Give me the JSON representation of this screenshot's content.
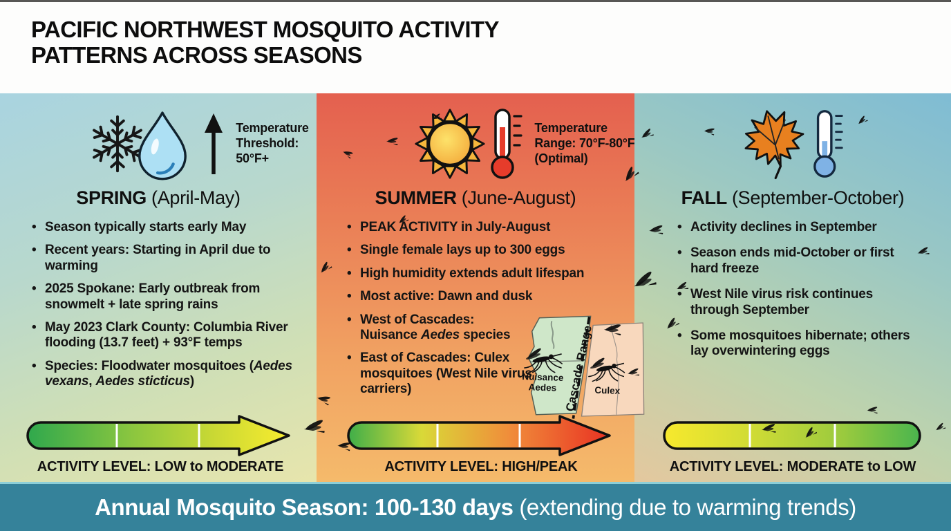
{
  "header": {
    "title_line1": "PACIFIC NORTHWEST MOSQUITO ACTIVITY",
    "title_line2": "PATTERNS ACROSS SEASONS"
  },
  "seasons": {
    "spring": {
      "name": "SPRING",
      "range": "(April-May)",
      "temp": {
        "line1": "Temperature",
        "line2": "Threshold:",
        "line3": "50°F+"
      },
      "bullets": [
        "Season typically starts early May",
        "Recent years: Starting in April due to warming",
        "2025 Spokane: Early outbreak from snowmelt + late spring rains",
        "May 2023 Clark County: Columbia River flooding (13.7 feet) + 93°F temps"
      ],
      "species_bullet": {
        "lead": "Species: Floodwater mosquitoes (",
        "italic1": "Aedes vexans",
        "sep": ", ",
        "italic2": "Aedes sticticus",
        "close": ")"
      },
      "activity": {
        "prefix": "ACTIVITY LEVEL: ",
        "bold1": "LOW",
        "mid": " to ",
        "bold2": "MODERATE"
      }
    },
    "summer": {
      "name": "SUMMER",
      "range": "(June-August)",
      "temp": {
        "line1": "Temperature",
        "line2": "Range: 70°F-80°F",
        "line3": "(Optimal)"
      },
      "bullets": [
        "PEAK ACTIVITY in July-August",
        "Single female lays up to 300 eggs",
        "High humidity extends adult lifespan",
        "Most active: Dawn and dusk"
      ],
      "west_bullet": {
        "line1": "West of Cascades:",
        "lead": "Nuisance ",
        "italic": "Aedes",
        "tail": " species"
      },
      "east_bullet": "East of Cascades: Culex mosquitoes (West Nile virus carriers)",
      "activity": {
        "prefix": "ACTIVITY LEVEL: ",
        "bold1": "HIGH/PEAK"
      }
    },
    "fall": {
      "name": "FALL",
      "range": "(September-October)",
      "bullets": [
        "Activity declines in September",
        "Season ends mid-October or first hard freeze",
        "West Nile virus risk continues through September",
        "Some mosquitoes hibernate; others lay overwintering eggs"
      ],
      "activity": {
        "prefix": "ACTIVITY LEVEL: ",
        "bold1": "MODERATE",
        "mid": " to ",
        "bold2": "LOW"
      }
    }
  },
  "map": {
    "range_label": "Cascade Range",
    "west_label_line1": "Nuisance",
    "west_label_line2": "Aedes",
    "east_label": "Culex"
  },
  "footer": {
    "main": "Annual Mosquito Season: 100-130 days ",
    "note": "(extending due to warming trends)"
  },
  "colors": {
    "footer_bg": "#35829A",
    "spring_top": "#A9D4E0",
    "spring_bottom": "#E7E5AC",
    "summer_top": "#E4604F",
    "summer_bottom": "#F5BA6B",
    "fall_top": "#7FBCD4",
    "fall_bottom": "#E4C89E",
    "arrow_green": "#2FA84D",
    "arrow_yellow": "#F8EC2F",
    "arrow_red": "#E93223"
  }
}
